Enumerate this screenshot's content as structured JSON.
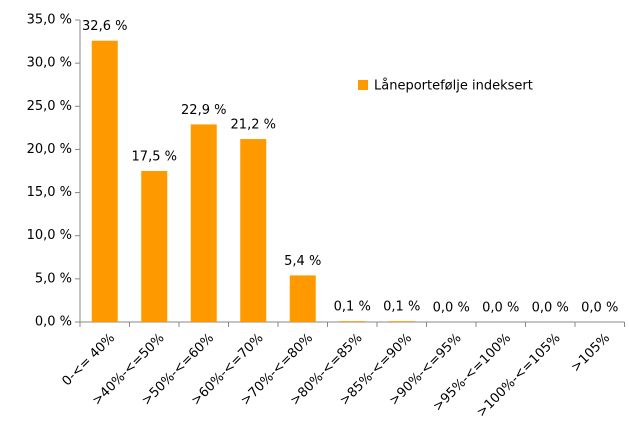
{
  "chart_data": {
    "type": "bar",
    "categories": [
      "0-<= 40%",
      ">40%-<=50%",
      ">50%-<=60%",
      ">60%-<=70%",
      ">70%-<=80%",
      ">80%-<=85%",
      ">85%-<=90%",
      ">90%-<=95%",
      ">95%-<=100%",
      ">100%-<=105%",
      ">105%"
    ],
    "series": [
      {
        "name": "Låneportefølje indeksert",
        "color": "#ff9900",
        "values": [
          32.6,
          17.5,
          22.9,
          21.2,
          5.4,
          0.1,
          0.1,
          0.0,
          0.0,
          0.0,
          0.0
        ],
        "value_labels": [
          "32,6 %",
          "17,5 %",
          "22,9 %",
          "21,2 %",
          "5,4 %",
          "0,1 %",
          "0,1 %",
          "0,0 %",
          "0,0 %",
          "0,0 %",
          "0,0 %"
        ]
      }
    ],
    "ylim": [
      0,
      35
    ],
    "yticks": [
      {
        "value": 0,
        "label": "0,0 %"
      },
      {
        "value": 5,
        "label": "5,0 %"
      },
      {
        "value": 10,
        "label": "10,0 %"
      },
      {
        "value": 15,
        "label": "15,0 %"
      },
      {
        "value": 20,
        "label": "20,0 %"
      },
      {
        "value": 25,
        "label": "25,0 %"
      },
      {
        "value": 30,
        "label": "30,0 %"
      },
      {
        "value": 35,
        "label": "35,0 %"
      }
    ],
    "grid": false,
    "legend": "upper right"
  }
}
